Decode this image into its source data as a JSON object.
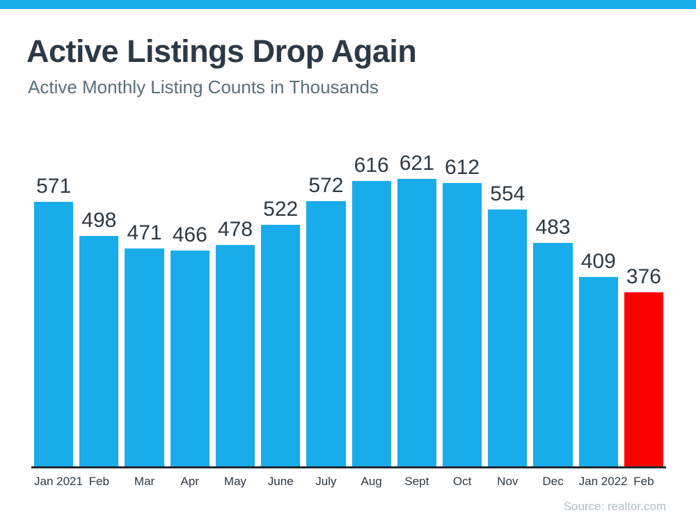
{
  "header": {
    "title": "Active Listings Drop Again",
    "subtitle": "Active Monthly Listing Counts in Thousands"
  },
  "footer": {
    "source": "Source: realtor.com"
  },
  "colors": {
    "accent_strip": "#19ACEA",
    "bar": "#19ACEA",
    "highlight_bar": "#FE0000",
    "title_text": "#2C3A47",
    "subtitle_text": "#5B6E79",
    "value_label_text": "#2E3942",
    "axis_line": "#1E2A32",
    "source_text": "#B2BEC3"
  },
  "chart_data": {
    "type": "bar",
    "title": "Active Listings Drop Again",
    "subtitle": "Active Monthly Listing Counts in Thousands",
    "categories": [
      "Jan 2021",
      "Feb",
      "Mar",
      "Apr",
      "May",
      "June",
      "July",
      "Aug",
      "Sept",
      "Oct",
      "Nov",
      "Dec",
      "Jan 2022",
      "Feb"
    ],
    "values": [
      571,
      498,
      471,
      466,
      478,
      522,
      572,
      616,
      621,
      612,
      554,
      483,
      409,
      376
    ],
    "unit": "thousands",
    "value_labels_shown": true,
    "highlight_index": 13,
    "xlabel": "",
    "ylabel": "",
    "ylim": [
      0,
      650
    ],
    "grid": false,
    "legend": false,
    "source": "Source: realtor.com"
  }
}
